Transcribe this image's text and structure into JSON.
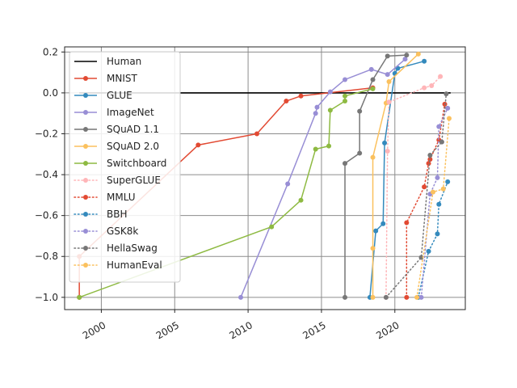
{
  "chart_data": {
    "type": "line",
    "title": "",
    "xlabel": "",
    "ylabel": "",
    "xlim": [
      1997.5,
      2024.8
    ],
    "ylim": [
      -1.06,
      0.225
    ],
    "grid": true,
    "legend_position": "upper-left",
    "x_ticks": [
      2000,
      2005,
      2010,
      2015,
      2020
    ],
    "x_tick_labels": [
      "2000",
      "2005",
      "2010",
      "2015",
      "2020"
    ],
    "y_ticks": [
      0.2,
      0.0,
      -0.2,
      -0.4,
      -0.6,
      -0.8,
      -1.0
    ],
    "y_tick_labels": [
      "0.2",
      "0.0",
      "−0.2",
      "−0.4",
      "−0.6",
      "−0.8",
      "−1.0"
    ],
    "series": [
      {
        "name": "Human",
        "color": "#000000",
        "style": "solid",
        "marker": false,
        "x": [
          1998.5,
          2023.8
        ],
        "y": [
          0.0,
          0.0
        ]
      },
      {
        "name": "MNIST",
        "color": "#e24a33",
        "style": "solid",
        "marker": true,
        "x": [
          1998.5,
          1998.5,
          2006.6,
          2010.6,
          2012.6,
          2013.6,
          2018.5
        ],
        "y": [
          -1.0,
          -0.8,
          -0.255,
          -0.2,
          -0.04,
          -0.015,
          0.025
        ]
      },
      {
        "name": "GLUE",
        "color": "#348abd",
        "style": "solid",
        "marker": true,
        "x": [
          2018.3,
          2018.7,
          2019.2,
          2019.3,
          2020.0,
          2020.2,
          2022.0
        ],
        "y": [
          -1.0,
          -0.675,
          -0.64,
          -0.245,
          0.095,
          0.12,
          0.155
        ]
      },
      {
        "name": "ImageNet",
        "color": "#988ed5",
        "style": "solid",
        "marker": true,
        "x": [
          2009.5,
          2012.7,
          2014.6,
          2014.7,
          2015.6,
          2016.6,
          2018.4,
          2019.5,
          2020.7
        ],
        "y": [
          -1.0,
          -0.445,
          -0.1,
          -0.07,
          0.005,
          0.065,
          0.115,
          0.09,
          0.165
        ]
      },
      {
        "name": "SQuAD 1.1",
        "color": "#777777",
        "style": "solid",
        "marker": true,
        "x": [
          2016.6,
          2016.6,
          2017.6,
          2017.6,
          2018.5,
          2019.5,
          2020.8
        ],
        "y": [
          -1.0,
          -0.345,
          -0.295,
          -0.09,
          0.065,
          0.18,
          0.185
        ]
      },
      {
        "name": "SQuAD 2.0",
        "color": "#fbc15e",
        "style": "solid",
        "marker": true,
        "x": [
          2018.5,
          2018.5,
          2018.5,
          2019.4,
          2019.6,
          2021.6
        ],
        "y": [
          -1.0,
          -0.76,
          -0.315,
          -0.05,
          0.055,
          0.19
        ]
      },
      {
        "name": "Switchboard",
        "color": "#8eba42",
        "style": "solid",
        "marker": true,
        "x": [
          1998.5,
          2011.6,
          2013.6,
          2014.6,
          2015.5,
          2015.6,
          2016.6,
          2016.6,
          2018.5
        ],
        "y": [
          -1.0,
          -0.655,
          -0.525,
          -0.275,
          -0.26,
          -0.085,
          -0.04,
          -0.015,
          0.02
        ]
      },
      {
        "name": "SuperGLUE",
        "color": "#ffb5b8",
        "style": "dotted",
        "marker": true,
        "x": [
          2019.4,
          2019.5,
          2019.6,
          2022.0,
          2022.5,
          2023.1
        ],
        "y": [
          -1.0,
          -0.285,
          -0.045,
          0.025,
          0.035,
          0.08
        ]
      },
      {
        "name": "MMLU",
        "color": "#e24a33",
        "style": "dotted",
        "marker": true,
        "x": [
          2020.8,
          2020.8,
          2022.0,
          2022.3,
          2022.4,
          2023.0,
          2023.4
        ],
        "y": [
          -1.0,
          -0.635,
          -0.46,
          -0.345,
          -0.325,
          -0.23,
          -0.055
        ]
      },
      {
        "name": "BBH",
        "color": "#348abd",
        "style": "dotted",
        "marker": true,
        "x": [
          2021.6,
          2022.3,
          2022.9,
          2023.0,
          2023.6
        ],
        "y": [
          -1.0,
          -0.775,
          -0.69,
          -0.545,
          -0.435
        ]
      },
      {
        "name": "GSK8k",
        "color": "#988ed5",
        "style": "dotted",
        "marker": true,
        "x": [
          2021.8,
          2022.4,
          2022.9,
          2023.0,
          2023.6
        ],
        "y": [
          -1.0,
          -0.495,
          -0.415,
          -0.165,
          -0.075
        ]
      },
      {
        "name": "HellaSwag",
        "color": "#777777",
        "style": "dotted",
        "marker": true,
        "x": [
          2019.4,
          2021.8,
          2022.4,
          2023.2,
          2023.5
        ],
        "y": [
          -1.0,
          -0.805,
          -0.305,
          -0.24,
          -0.005
        ]
      },
      {
        "name": "HumanEval",
        "color": "#fbc15e",
        "style": "dotted",
        "marker": true,
        "x": [
          2021.5,
          2022.6,
          2023.3,
          2023.7
        ],
        "y": [
          -1.0,
          -0.485,
          -0.47,
          -0.125
        ]
      }
    ]
  }
}
